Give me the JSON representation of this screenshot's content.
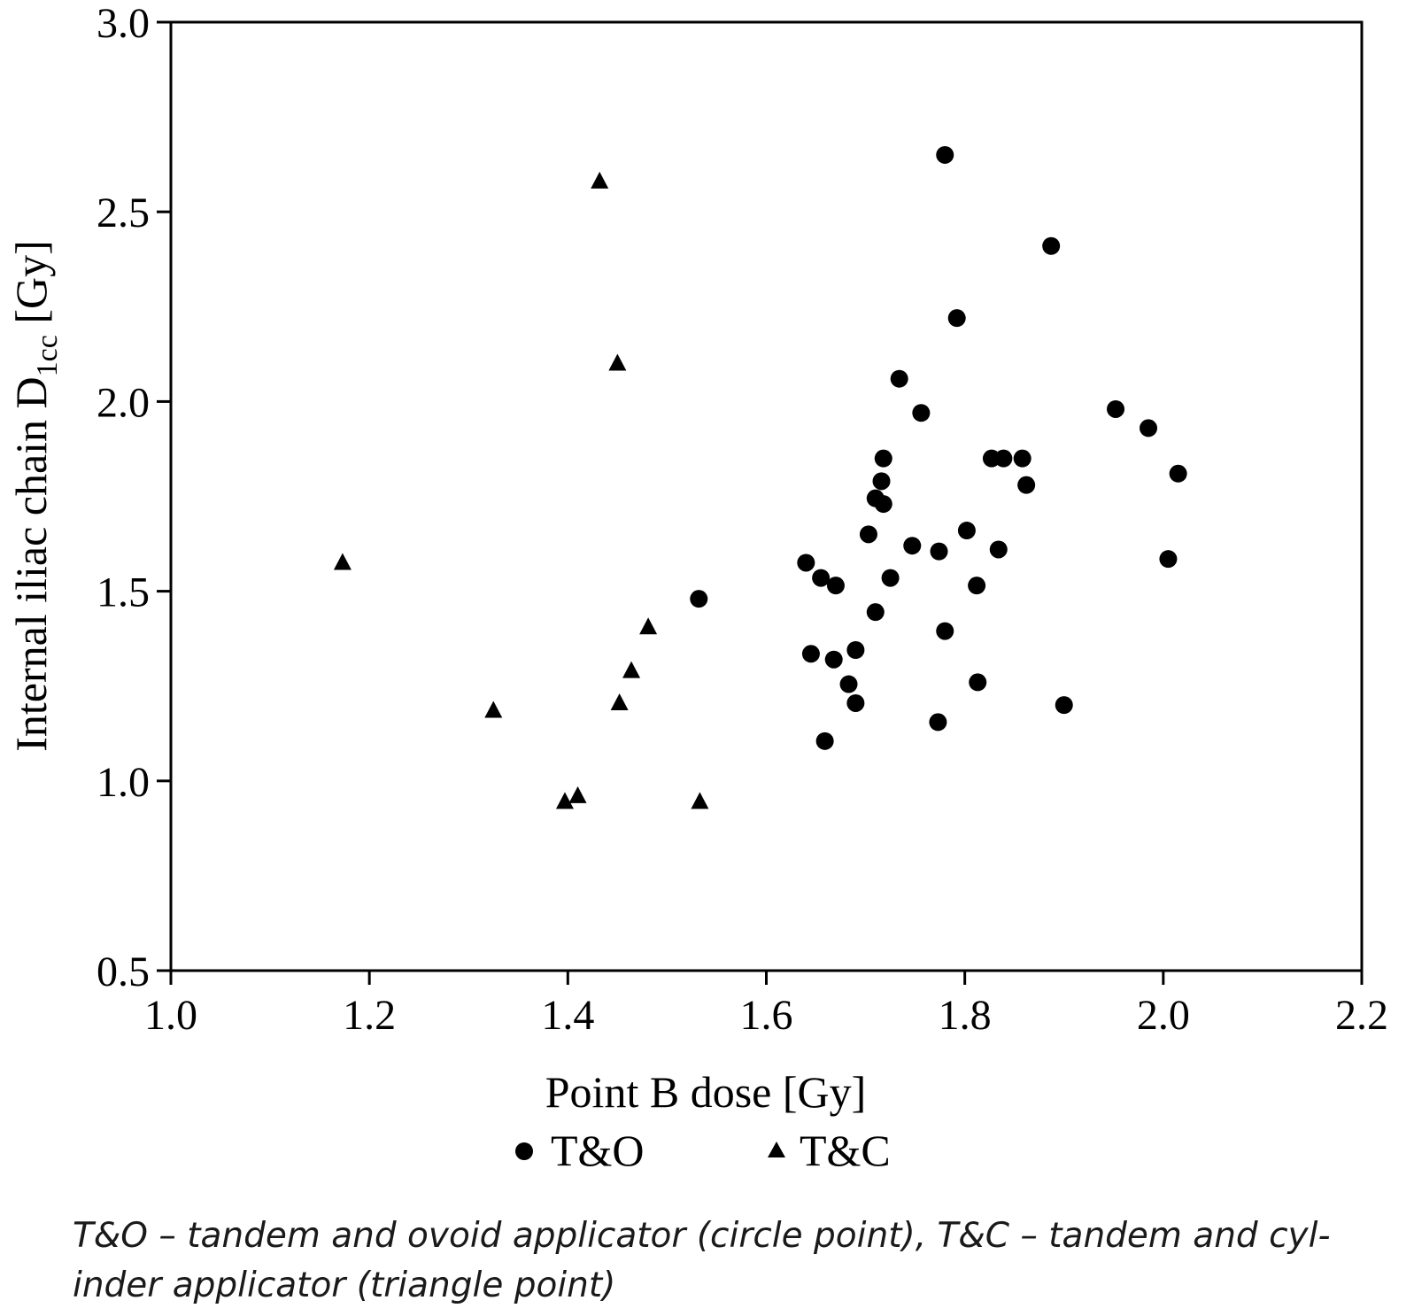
{
  "chart_data": {
    "type": "scatter",
    "title": "",
    "xlabel": "Point B dose [Gy]",
    "ylabel_main": "Internal iliac chain D",
    "ylabel_sub": "1cc",
    "ylabel_unit": " [Gy]",
    "xlim": [
      1.0,
      2.2
    ],
    "ylim": [
      0.5,
      3.0
    ],
    "xticks": [
      "1.0",
      "1.2",
      "1.4",
      "1.6",
      "1.8",
      "2.0",
      "2.2"
    ],
    "yticks": [
      "0.5",
      "1.0",
      "1.5",
      "2.0",
      "2.5",
      "3.0"
    ],
    "grid": false,
    "legend_position": "bottom",
    "series": [
      {
        "name": "T&O",
        "marker": "circle",
        "color": "#000000",
        "points": [
          [
            1.78,
            2.65
          ],
          [
            1.887,
            2.41
          ],
          [
            1.792,
            2.22
          ],
          [
            1.734,
            2.06
          ],
          [
            1.756,
            1.97
          ],
          [
            1.952,
            1.98
          ],
          [
            1.985,
            1.93
          ],
          [
            2.015,
            1.81
          ],
          [
            1.718,
            1.85
          ],
          [
            1.827,
            1.85
          ],
          [
            1.839,
            1.85
          ],
          [
            1.858,
            1.85
          ],
          [
            1.862,
            1.78
          ],
          [
            1.716,
            1.79
          ],
          [
            1.71,
            1.745
          ],
          [
            1.718,
            1.73
          ],
          [
            1.703,
            1.65
          ],
          [
            1.747,
            1.62
          ],
          [
            1.774,
            1.605
          ],
          [
            1.802,
            1.66
          ],
          [
            1.834,
            1.61
          ],
          [
            2.005,
            1.585
          ],
          [
            1.64,
            1.575
          ],
          [
            1.655,
            1.535
          ],
          [
            1.67,
            1.515
          ],
          [
            1.725,
            1.535
          ],
          [
            1.812,
            1.515
          ],
          [
            1.532,
            1.48
          ],
          [
            1.71,
            1.445
          ],
          [
            1.78,
            1.395
          ],
          [
            1.645,
            1.335
          ],
          [
            1.668,
            1.32
          ],
          [
            1.69,
            1.345
          ],
          [
            1.683,
            1.255
          ],
          [
            1.813,
            1.26
          ],
          [
            1.69,
            1.205
          ],
          [
            1.9,
            1.2
          ],
          [
            1.773,
            1.155
          ],
          [
            1.659,
            1.105
          ]
        ]
      },
      {
        "name": "T&C",
        "marker": "triangle",
        "color": "#000000",
        "points": [
          [
            1.432,
            2.58
          ],
          [
            1.45,
            2.1
          ],
          [
            1.173,
            1.575
          ],
          [
            1.481,
            1.405
          ],
          [
            1.464,
            1.29
          ],
          [
            1.452,
            1.205
          ],
          [
            1.325,
            1.185
          ],
          [
            1.41,
            0.96
          ],
          [
            1.397,
            0.945
          ],
          [
            1.533,
            0.945
          ]
        ]
      }
    ]
  },
  "caption": {
    "line1": "T&O – tandem and ovoid applicator (circle point), T&C – tandem and cyl-",
    "line2": "inder applicator (triangle point)"
  }
}
